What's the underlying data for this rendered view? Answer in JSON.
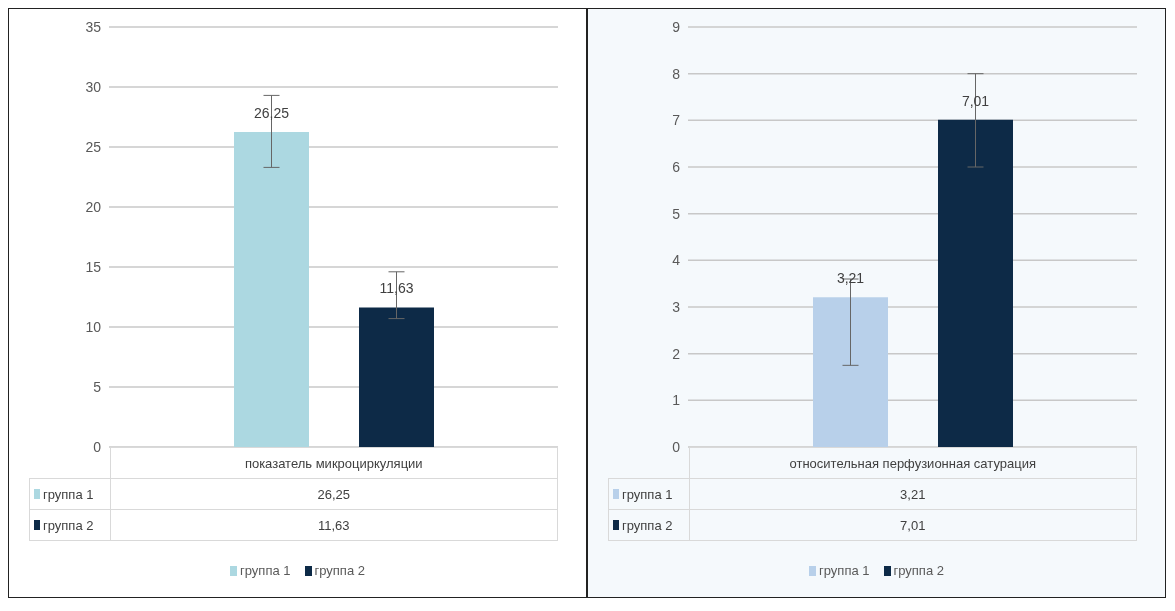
{
  "chart_data": [
    {
      "type": "bar",
      "categories": [
        "показатель микроциркуляции"
      ],
      "series": [
        {
          "name": "группа 1",
          "color": "#acd8e1",
          "values": [
            26.25
          ],
          "errors": [
            [
              23.3,
              29.3
            ]
          ],
          "value_labels": [
            "26,25"
          ]
        },
        {
          "name": "группа 2",
          "color": "#0d2a47",
          "values": [
            11.63
          ],
          "errors": [
            [
              10.7,
              14.6
            ]
          ],
          "value_labels": [
            "11,63"
          ]
        }
      ],
      "ylim": [
        0,
        35
      ],
      "yticks": [
        0,
        5,
        10,
        15,
        20,
        25,
        30,
        35
      ],
      "grid": "y",
      "legend": "bottom"
    },
    {
      "type": "bar",
      "categories": [
        "относительная перфузионная сатурация"
      ],
      "series": [
        {
          "name": "группа 1",
          "color": "#b8d0ea",
          "values": [
            3.21
          ],
          "errors": [
            [
              1.75,
              3.6
            ]
          ],
          "value_labels": [
            "3,21"
          ]
        },
        {
          "name": "группа 2",
          "color": "#0d2a47",
          "values": [
            7.01
          ],
          "errors": [
            [
              6.0,
              8.0
            ]
          ],
          "value_labels": [
            "7,01"
          ]
        }
      ],
      "ylim": [
        0,
        9
      ],
      "yticks": [
        0,
        1,
        2,
        3,
        4,
        5,
        6,
        7,
        8,
        9
      ],
      "grid": "y",
      "legend": "bottom"
    }
  ]
}
